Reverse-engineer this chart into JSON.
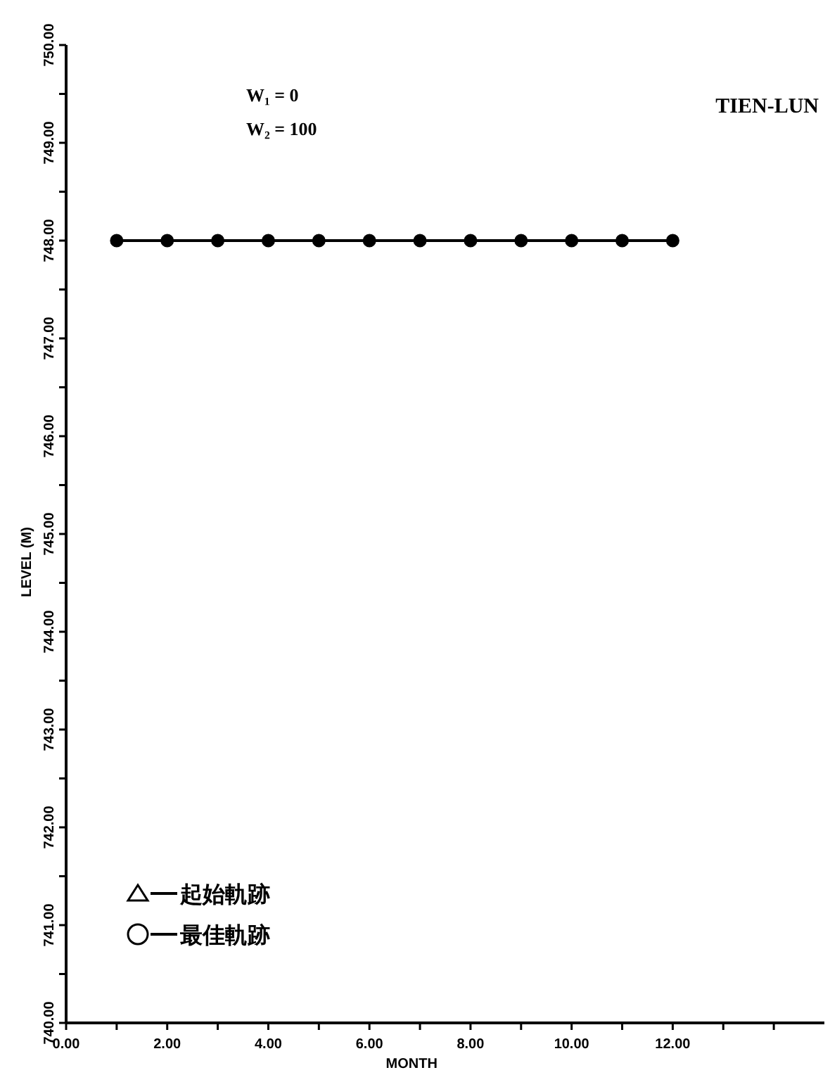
{
  "chart_data": {
    "type": "line",
    "title": "TIEN-LUN",
    "xlabel": "MONTH",
    "ylabel": "LEVEL (M)",
    "annotations": [
      "W₁ = 0",
      "W₂ = 100"
    ],
    "x": [
      1,
      2,
      3,
      4,
      5,
      6,
      7,
      8,
      9,
      10,
      11,
      12
    ],
    "series": [
      {
        "name": "起始軌跡",
        "color": "#000000",
        "marker": "triangle",
        "values": [
          null,
          null,
          null,
          null,
          null,
          null,
          null,
          null,
          null,
          null,
          null,
          null
        ]
      },
      {
        "name": "最佳軌跡",
        "color": "#000000",
        "marker": "circle",
        "values": [
          748,
          748,
          748,
          748,
          748,
          748,
          748,
          748,
          748,
          748,
          748,
          748
        ]
      }
    ],
    "xlim": [
      0,
      15
    ],
    "xticks": [
      {
        "value": 0,
        "label": "0.00"
      },
      {
        "value": 1,
        "label": null
      },
      {
        "value": 2,
        "label": "2.00"
      },
      {
        "value": 3,
        "label": null
      },
      {
        "value": 4,
        "label": "4.00"
      },
      {
        "value": 5,
        "label": null
      },
      {
        "value": 6,
        "label": "6.00"
      },
      {
        "value": 7,
        "label": null
      },
      {
        "value": 8,
        "label": "8.00"
      },
      {
        "value": 9,
        "label": null
      },
      {
        "value": 10,
        "label": "10.00"
      },
      {
        "value": 11,
        "label": null
      },
      {
        "value": 12,
        "label": "12.00"
      },
      {
        "value": 13,
        "label": null
      },
      {
        "value": 14,
        "label": null
      }
    ],
    "ylim": [
      740,
      750
    ],
    "yticks": [
      {
        "value": 740,
        "label": "740.00"
      },
      {
        "value": 740.5,
        "label": null
      },
      {
        "value": 741,
        "label": "741.00"
      },
      {
        "value": 741.5,
        "label": null
      },
      {
        "value": 742,
        "label": "742.00"
      },
      {
        "value": 742.5,
        "label": null
      },
      {
        "value": 743,
        "label": "743.00"
      },
      {
        "value": 743.5,
        "label": null
      },
      {
        "value": 744,
        "label": "744.00"
      },
      {
        "value": 744.5,
        "label": null
      },
      {
        "value": 745,
        "label": "745.00"
      },
      {
        "value": 745.5,
        "label": null
      },
      {
        "value": 746,
        "label": "746.00"
      },
      {
        "value": 746.5,
        "label": null
      },
      {
        "value": 747,
        "label": "747.00"
      },
      {
        "value": 747.5,
        "label": null
      },
      {
        "value": 748,
        "label": "748.00"
      },
      {
        "value": 748.5,
        "label": null
      },
      {
        "value": 749,
        "label": "749.00"
      },
      {
        "value": 749.5,
        "label": null
      },
      {
        "value": 750,
        "label": "750.00"
      }
    ],
    "grid": false,
    "legend": "bottom left",
    "line_style": "solid"
  }
}
